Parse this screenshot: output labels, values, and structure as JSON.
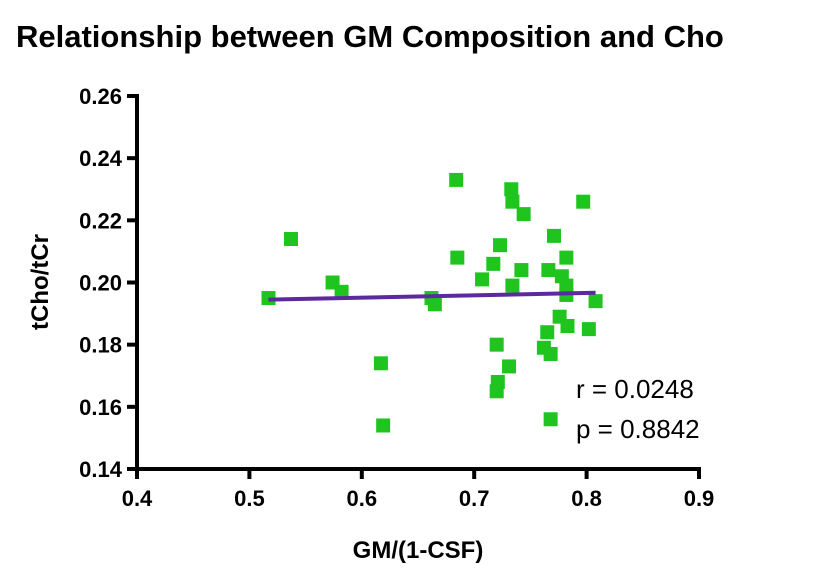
{
  "chart_data": {
    "type": "scatter",
    "title": "Relationship between GM Composition and Cho",
    "xlabel": "GM/(1-CSF)",
    "ylabel": "tCho/tCr",
    "xlim": [
      0.4,
      0.9
    ],
    "ylim": [
      0.14,
      0.26
    ],
    "xticks": [
      "0.4",
      "0.5",
      "0.6",
      "0.7",
      "0.8",
      "0.9"
    ],
    "yticks": [
      "0.14",
      "0.16",
      "0.18",
      "0.20",
      "0.22",
      "0.24",
      "0.26"
    ],
    "marker_color": "#1fc41f",
    "line_color": "#5b2a9e",
    "points": [
      {
        "x": 0.517,
        "y": 0.195
      },
      {
        "x": 0.537,
        "y": 0.214
      },
      {
        "x": 0.574,
        "y": 0.2
      },
      {
        "x": 0.582,
        "y": 0.197
      },
      {
        "x": 0.617,
        "y": 0.174
      },
      {
        "x": 0.619,
        "y": 0.154
      },
      {
        "x": 0.662,
        "y": 0.195
      },
      {
        "x": 0.665,
        "y": 0.193
      },
      {
        "x": 0.684,
        "y": 0.233
      },
      {
        "x": 0.685,
        "y": 0.208
      },
      {
        "x": 0.707,
        "y": 0.201
      },
      {
        "x": 0.717,
        "y": 0.206
      },
      {
        "x": 0.72,
        "y": 0.18
      },
      {
        "x": 0.72,
        "y": 0.165
      },
      {
        "x": 0.721,
        "y": 0.168
      },
      {
        "x": 0.723,
        "y": 0.212
      },
      {
        "x": 0.731,
        "y": 0.173
      },
      {
        "x": 0.733,
        "y": 0.23
      },
      {
        "x": 0.734,
        "y": 0.226
      },
      {
        "x": 0.734,
        "y": 0.199
      },
      {
        "x": 0.742,
        "y": 0.204
      },
      {
        "x": 0.744,
        "y": 0.222
      },
      {
        "x": 0.762,
        "y": 0.179
      },
      {
        "x": 0.765,
        "y": 0.184
      },
      {
        "x": 0.766,
        "y": 0.204
      },
      {
        "x": 0.768,
        "y": 0.156
      },
      {
        "x": 0.768,
        "y": 0.177
      },
      {
        "x": 0.771,
        "y": 0.215
      },
      {
        "x": 0.776,
        "y": 0.189
      },
      {
        "x": 0.778,
        "y": 0.202
      },
      {
        "x": 0.782,
        "y": 0.208
      },
      {
        "x": 0.782,
        "y": 0.196
      },
      {
        "x": 0.782,
        "y": 0.199
      },
      {
        "x": 0.783,
        "y": 0.186
      },
      {
        "x": 0.797,
        "y": 0.226
      },
      {
        "x": 0.802,
        "y": 0.185
      },
      {
        "x": 0.808,
        "y": 0.194
      }
    ],
    "regression_line": {
      "x": [
        0.517,
        0.808
      ],
      "y": [
        0.1945,
        0.1967
      ]
    },
    "annotations": {
      "r": "r = 0.0248",
      "p": "p = 0.8842"
    },
    "grid": false,
    "legend": "none"
  }
}
